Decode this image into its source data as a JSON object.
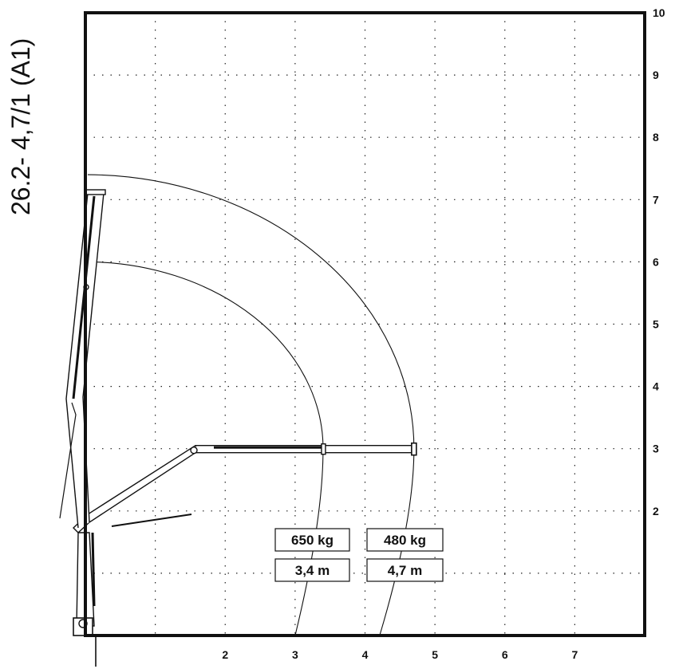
{
  "title": "26.2- 4,7/1 (A1)",
  "chart_data": {
    "type": "crane-load-diagram",
    "x_ticks": [
      "2",
      "3",
      "4",
      "5",
      "6",
      "7"
    ],
    "y_ticks": [
      "2",
      "3",
      "4",
      "5",
      "6",
      "7",
      "8",
      "9",
      "10"
    ],
    "x_range": [
      0,
      8
    ],
    "y_range": [
      0,
      10
    ],
    "grid": true,
    "boom_height": 3,
    "load_points": [
      {
        "load": "650 kg",
        "reach": "3,4 m",
        "x": 3.4
      },
      {
        "load": "480 kg",
        "reach": "4,7 m",
        "x": 4.7
      }
    ],
    "arcs": [
      {
        "radius_x": 3.4,
        "radius_y": 6.0
      },
      {
        "radius_x": 4.7,
        "radius_y": 7.4
      }
    ]
  }
}
